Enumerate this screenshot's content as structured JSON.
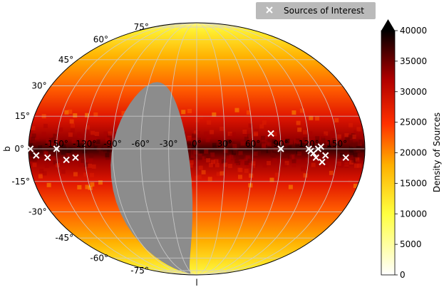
{
  "chart_data": {
    "type": "heatmap",
    "projection": "aitoff-style all-sky",
    "xlabel": "l",
    "ylabel": "b",
    "lon_tick_labels": [
      "-150°",
      "-120°",
      "-90°",
      "-60°",
      "-30°",
      "0°",
      "30°",
      "60°",
      "90°",
      "120°",
      "150°"
    ],
    "lat_tick_labels": [
      "75°",
      "60°",
      "45°",
      "30°",
      "15°",
      "0°",
      "-15°",
      "-30°",
      "-45°",
      "-60°",
      "-75°"
    ],
    "colorbar": {
      "label": "Density of Sources",
      "range": [
        0,
        40000
      ],
      "ticks": [
        "0",
        "5000",
        "10000",
        "15000",
        "20000",
        "25000",
        "30000",
        "35000",
        "40000"
      ],
      "colormap": "hot_r",
      "extend": "max"
    },
    "legend": {
      "label": "Sources of Interest",
      "placement": "top-right"
    },
    "masked_region_color": "#8c8c8c",
    "sources_of_interest": [
      {
        "l": -178,
        "b": 0
      },
      {
        "l": -172,
        "b": -3
      },
      {
        "l": -160,
        "b": -4
      },
      {
        "l": -150,
        "b": 0
      },
      {
        "l": -140,
        "b": -5
      },
      {
        "l": -130,
        "b": -4
      },
      {
        "l": 80,
        "b": 7
      },
      {
        "l": 90,
        "b": 0
      },
      {
        "l": 120,
        "b": 0
      },
      {
        "l": 122,
        "b": -1
      },
      {
        "l": 125,
        "b": -2
      },
      {
        "l": 128,
        "b": -4
      },
      {
        "l": 130,
        "b": 0
      },
      {
        "l": 133,
        "b": 1
      },
      {
        "l": 135,
        "b": -6
      },
      {
        "l": 138,
        "b": -3
      },
      {
        "l": 160,
        "b": -4
      }
    ]
  }
}
